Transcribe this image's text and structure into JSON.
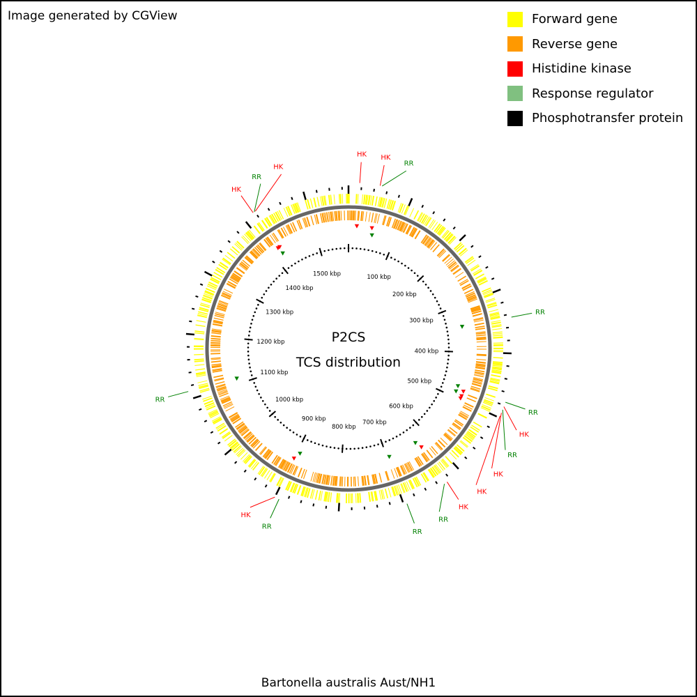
{
  "header_note": "Image generated by CGView",
  "center": {
    "title": "P2CS",
    "subtitle": "TCS distribution"
  },
  "footer_title": "Bartonella australis Aust/NH1",
  "legend": [
    {
      "label": "Forward gene",
      "color": "#ffff00"
    },
    {
      "label": "Reverse gene",
      "color": "#ff9900"
    },
    {
      "label": "Histidine kinase",
      "color": "#ff0000"
    },
    {
      "label": "Response regulator",
      "color": "#80c080"
    },
    {
      "label": "Phosphotransfer protein",
      "color": "#000000"
    }
  ],
  "map": {
    "genome_length_kbp": 1570,
    "tick_labels": [
      {
        "label": "100 kbp",
        "kbp": 100
      },
      {
        "label": "200 kbp",
        "kbp": 200
      },
      {
        "label": "300 kbp",
        "kbp": 300
      },
      {
        "label": "400 kbp",
        "kbp": 400
      },
      {
        "label": "500 kbp",
        "kbp": 500
      },
      {
        "label": "600 kbp",
        "kbp": 600
      },
      {
        "label": "700 kbp",
        "kbp": 700
      },
      {
        "label": "800 kbp",
        "kbp": 800
      },
      {
        "label": "900 kbp",
        "kbp": 900
      },
      {
        "label": "1000 kbp",
        "kbp": 1000
      },
      {
        "label": "1100 kbp",
        "kbp": 1100
      },
      {
        "label": "1200 kbp",
        "kbp": 1200
      },
      {
        "label": "1300 kbp",
        "kbp": 1300
      },
      {
        "label": "1400 kbp",
        "kbp": 1400
      },
      {
        "label": "1500 kbp",
        "kbp": 1500
      }
    ],
    "features": [
      {
        "label": "HK",
        "type": "HK",
        "kbp": 17
      },
      {
        "label": "HK",
        "type": "HK",
        "kbp": 48
      },
      {
        "label": "RR",
        "type": "RR",
        "kbp": 51
      },
      {
        "label": "RR",
        "type": "RR",
        "kbp": 345
      },
      {
        "label": "RR",
        "type": "RR",
        "kbp": 475
      },
      {
        "label": "HK",
        "type": "HK",
        "kbp": 482
      },
      {
        "label": "RR",
        "type": "RR",
        "kbp": 487
      },
      {
        "label": "HK",
        "type": "HK",
        "kbp": 492
      },
      {
        "label": "HK",
        "type": "HK",
        "kbp": 497
      },
      {
        "label": "HK",
        "type": "HK",
        "kbp": 626
      },
      {
        "label": "RR",
        "type": "RR",
        "kbp": 631
      },
      {
        "label": "RR",
        "type": "RR",
        "kbp": 695
      },
      {
        "label": "RR",
        "type": "RR",
        "kbp": 893
      },
      {
        "label": "HK",
        "type": "HK",
        "kbp": 900
      },
      {
        "label": "RR",
        "type": "RR",
        "kbp": 1112
      },
      {
        "label": "HK",
        "type": "HK",
        "kbp": 1417
      },
      {
        "label": "RR",
        "type": "RR",
        "kbp": 1419
      },
      {
        "label": "HK",
        "type": "HK",
        "kbp": 1421
      }
    ]
  }
}
